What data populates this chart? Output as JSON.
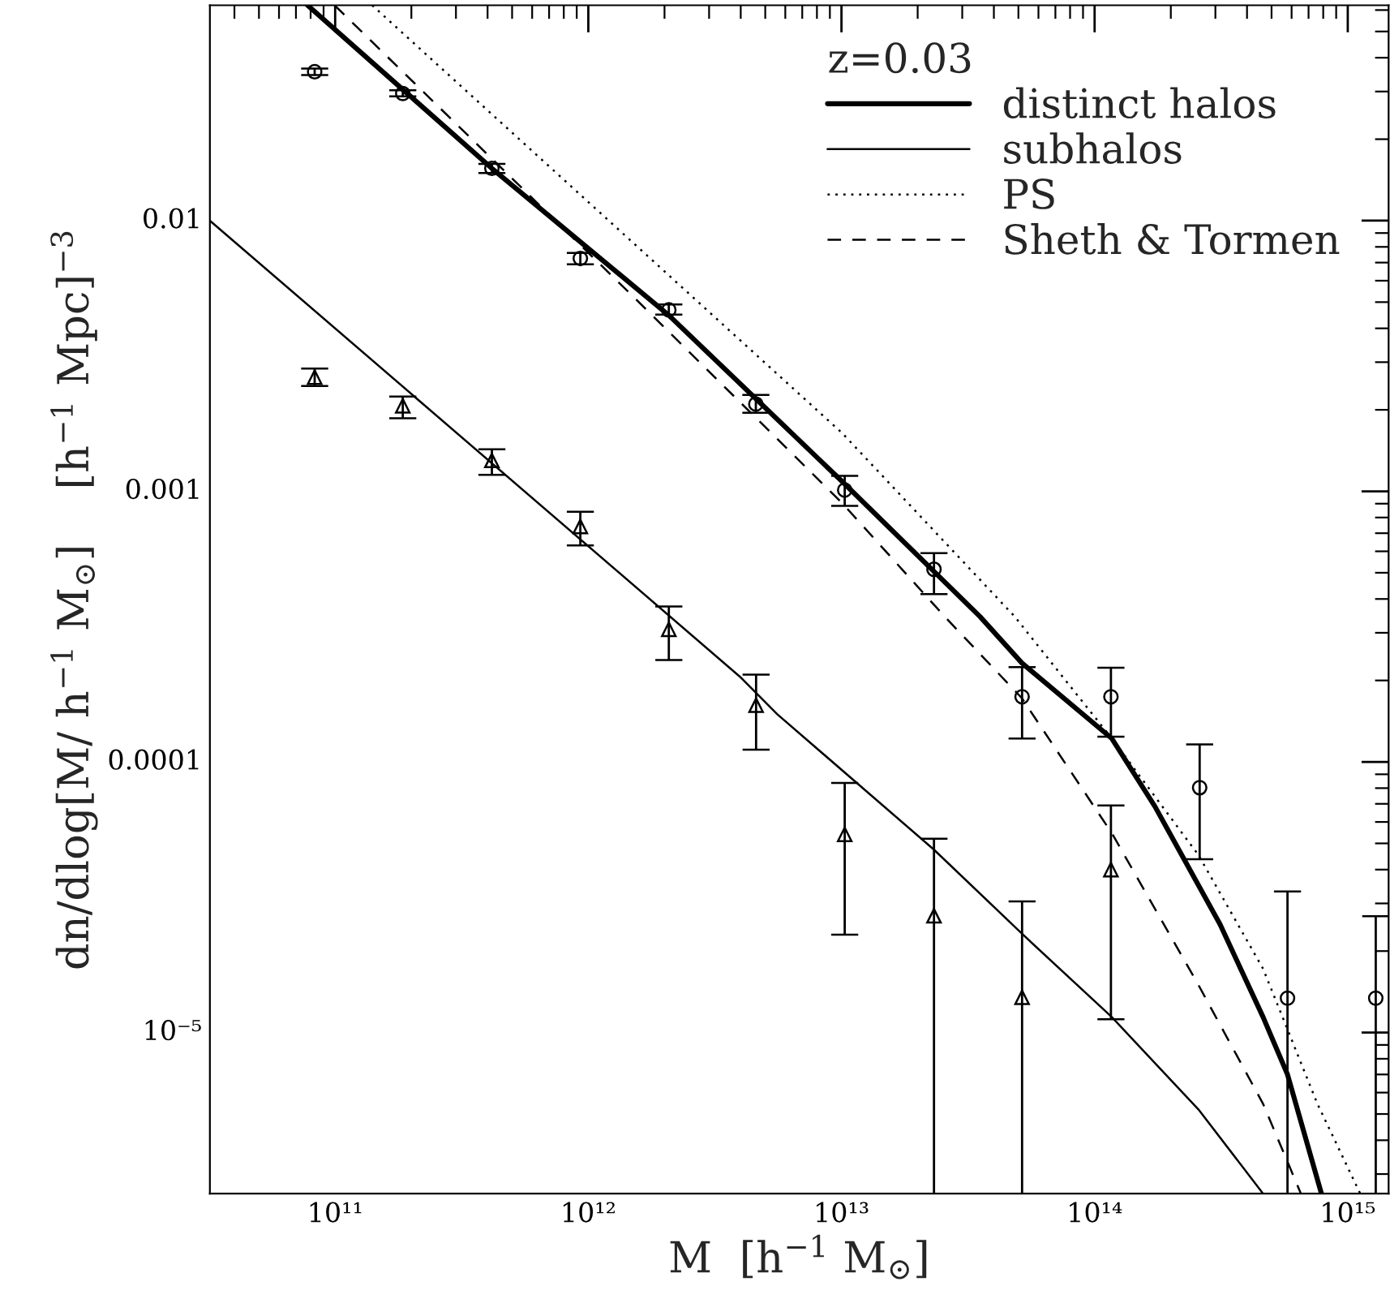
{
  "chart_data": {
    "type": "line",
    "xlabel": "M  [h$^{−1}$ M$_{⊙}$]",
    "ylabel": "dn/dlog[M/ h$^{−1}$ M$_{⊙}$]    [h$^{−1}$ Mpc]$^{−3}$",
    "legend_title": "z=0.03",
    "legend": "top right",
    "log": "xy",
    "grid": false,
    "xlim": [
      32000000000.0,
      1450000000000000.0
    ],
    "ylim": [
      2.54e-06,
      0.0625
    ],
    "xticks": [
      {
        "value": 100000000000.0,
        "label": "10¹¹"
      },
      {
        "value": 1000000000000.0,
        "label": "10¹²"
      },
      {
        "value": 10000000000000.0,
        "label": "10¹³"
      },
      {
        "value": 100000000000000.0,
        "label": "10¹⁴"
      },
      {
        "value": 1000000000000000.0,
        "label": "10¹⁵"
      }
    ],
    "yticks": [
      {
        "value": 1e-05,
        "label": "10⁻⁵"
      },
      0.0001,
      0.001,
      0.01
    ],
    "series": [
      {
        "name": "distinct halos",
        "color": "#000000",
        "line_style": "solid",
        "x": [
          77800000000.0,
          416000000000.0,
          2080000000000.0,
          10070000000000.0,
          35300000000000.0,
          51600000000000.0,
          117000000000000.0,
          173000000000000.0,
          313000000000000.0,
          463000000000000.0,
          578000000000000.0,
          787000000000000.0
        ],
        "values": [
          0.0625,
          0.0156,
          0.00447,
          0.001086,
          0.000344,
          0.000232,
          0.000122,
          6.85e-05,
          2.51e-05,
          1.14e-05,
          7e-06,
          2.54e-06
        ]
      },
      {
        "name": "subhalos",
        "color": "#000000",
        "line_style": "solid",
        "x": [
          32000000000.0,
          3960000000000.0,
          5580000000000.0,
          23200000000000.0,
          51600000000000.0,
          117000000000000.0,
          257000000000000.0,
          463000000000000.0
        ],
        "values": [
          0.01,
          0.000207,
          0.00015,
          4.74e-05,
          2.32e-05,
          1.14e-05,
          5.2e-06,
          2.54e-06
        ]
      },
      {
        "name": "PS",
        "color": "#000000",
        "line_style": "dotted",
        "x": [
          140000000000.0,
          10070000000000.0,
          48400000000000.0,
          117000000000000.0,
          257000000000000.0,
          463000000000000.0,
          759000000000000.0,
          1120000000000000.0
        ],
        "values": [
          0.0625,
          0.00164,
          0.000344,
          0.000122,
          4.53e-05,
          1.72e-05,
          5.45e-06,
          2.54e-06
        ]
      },
      {
        "name": "Sheth & Tormen",
        "color": "#000000",
        "line_style": "dashed",
        "x": [
          99500000000.0,
          1480000000000.0,
          10070000000000.0,
          25600000000000.0,
          51600000000000.0,
          117000000000000.0,
          257000000000000.0,
          463000000000000.0,
          653000000000000.0
        ],
        "values": [
          0.0625,
          0.00532,
          0.000904,
          0.000344,
          0.000172,
          5.45e-05,
          1.5e-05,
          5.45e-06,
          2.54e-06
        ]
      },
      {
        "type": "scatter",
        "marker": "circle",
        "color": "#000000",
        "x": [
          83000000000.0,
          185000000000.0,
          416000000000.0,
          930000000000.0,
          2080000000000.0,
          4590000000000.0,
          10300000000000.0,
          23200000000000.0,
          51700000000000.0,
          116000000000000.0,
          260000000000000.0,
          578000000000000.0,
          1290000000000000.0
        ],
        "values": [
          0.0355,
          0.0295,
          0.0156,
          0.00725,
          0.00468,
          0.0021,
          0.00101,
          0.000515,
          0.000174,
          0.000174,
          8.03e-05,
          1.34e-05,
          1.34e-05
        ],
        "errors": [
          [
            0.0345,
            0.0365
          ],
          [
            0.0288,
            0.0303
          ],
          [
            0.015,
            0.0162
          ],
          [
            0.0069,
            0.0076
          ],
          [
            0.0045,
            0.0049
          ],
          [
            0.00195,
            0.00227
          ],
          [
            0.000883,
            0.00114
          ],
          [
            0.000417,
            0.000591
          ],
          [
            0.000122,
            0.000224
          ],
          [
            0.000124,
            0.000223
          ],
          [
            4.37e-05,
            0.000116
          ],
          [
            2.54e-06,
            3.32e-05
          ],
          [
            2.54e-06,
            2.69e-05
          ]
        ]
      },
      {
        "type": "scatter",
        "marker": "triangle",
        "color": "#000000",
        "x": [
          83000000000.0,
          185000000000.0,
          416000000000.0,
          930000000000.0,
          2080000000000.0,
          4600000000000.0,
          10300000000000.0,
          23200000000000.0,
          51700000000000.0,
          116000000000000.0
        ],
        "values": [
          0.00264,
          0.00207,
          0.0013,
          0.000741,
          0.000309,
          0.000162,
          5.4e-05,
          2.7e-05,
          1.35e-05,
          4e-05
        ],
        "errors": [
          [
            0.00245,
            0.00284
          ],
          [
            0.00186,
            0.00224
          ],
          [
            0.00115,
            0.00143
          ],
          [
            0.000631,
            0.00084
          ],
          [
            0.000238,
            0.000375
          ],
          [
            0.000111,
            0.00021
          ],
          [
            2.3e-05,
            8.36e-05
          ],
          [
            2.54e-06,
            5.2e-05
          ],
          [
            2.54e-06,
            3.05e-05
          ],
          [
            1.12e-05,
            6.9e-05
          ]
        ]
      }
    ]
  }
}
